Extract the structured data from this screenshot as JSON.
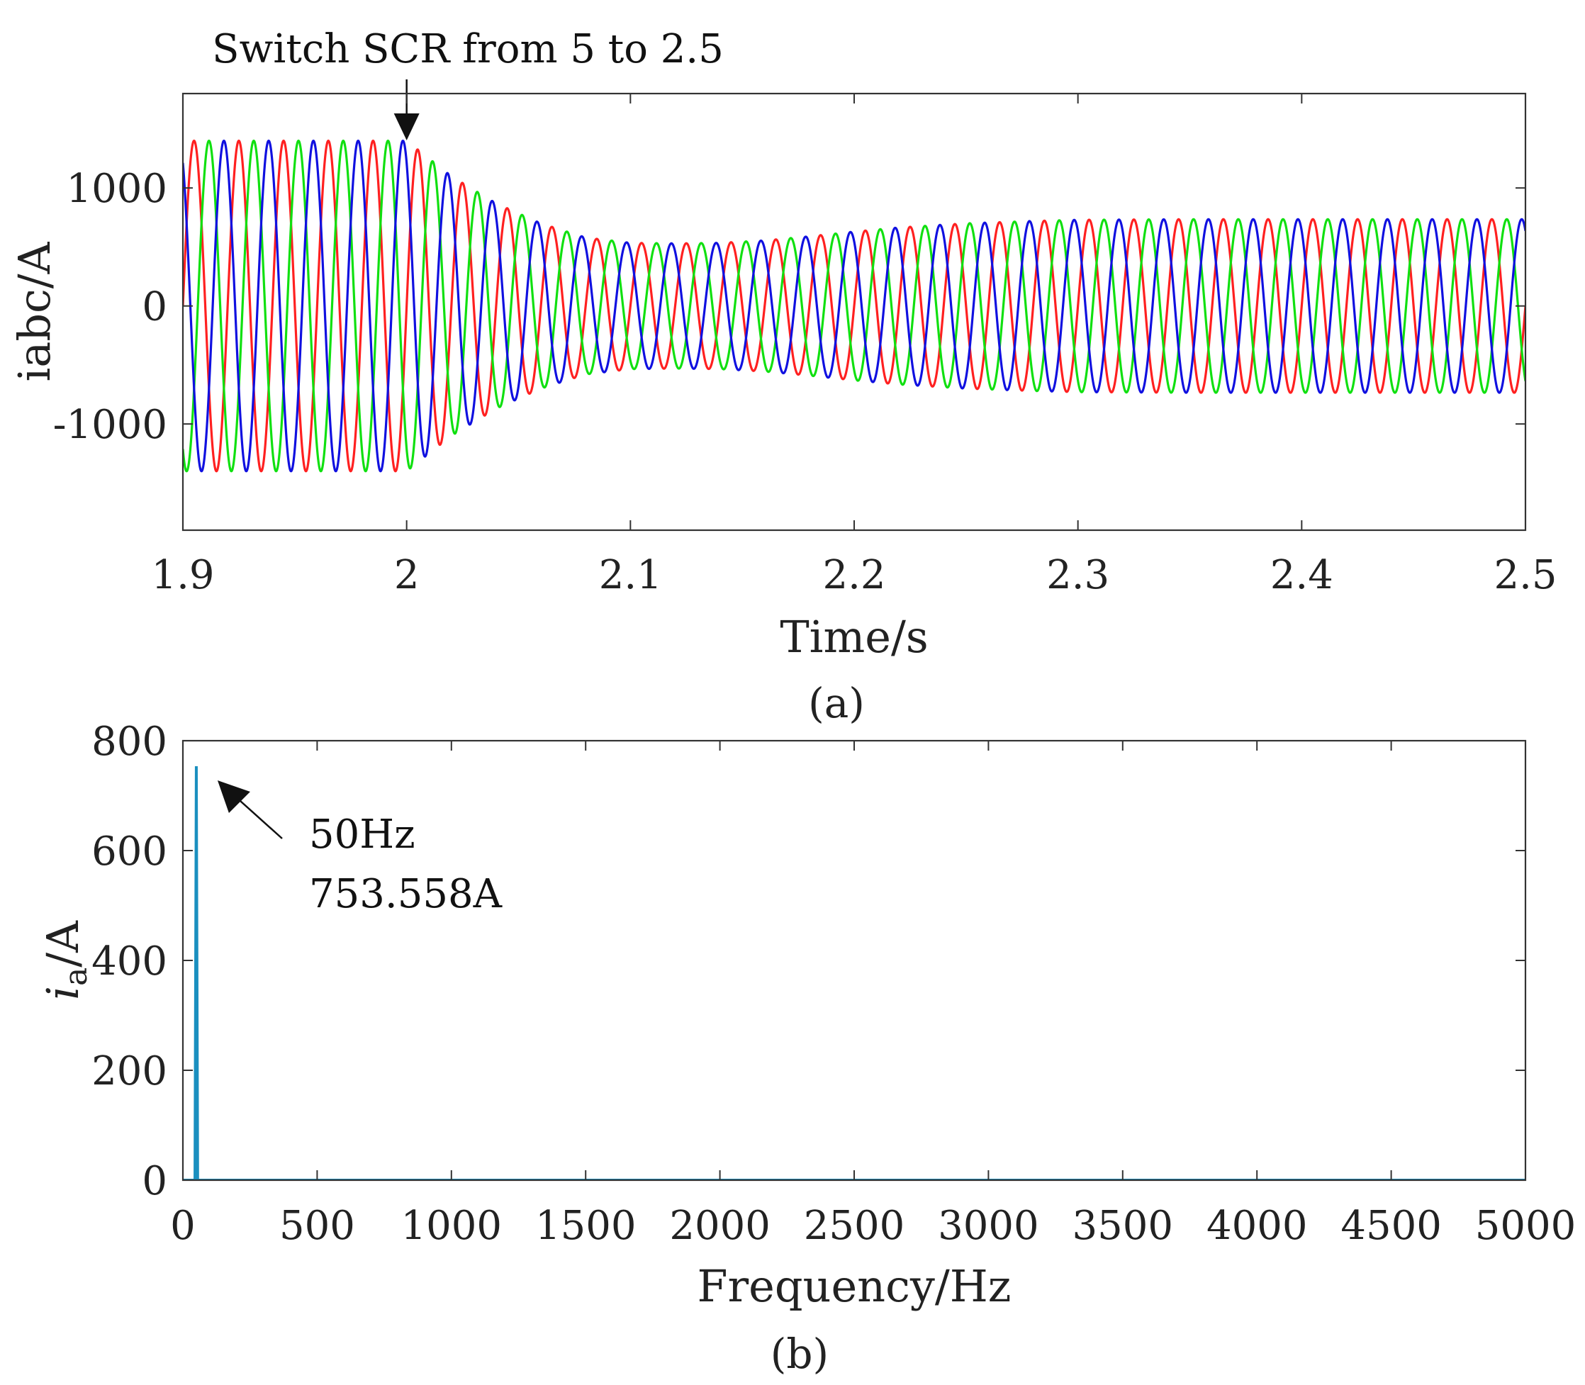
{
  "chart_data": [
    {
      "type": "line",
      "panel": "(a)",
      "xlabel": "Time/s",
      "ylabel": "iabc/A",
      "xlim": [
        1.9,
        2.5
      ],
      "ylim": [
        -1900,
        1800
      ],
      "xticks": [
        1.9,
        2,
        2.1,
        2.2,
        2.3,
        2.4,
        2.5
      ],
      "xtick_labels": [
        "1.9",
        "2",
        "2.1",
        "2.2",
        "2.3",
        "2.4",
        "2.5"
      ],
      "yticks": [
        1000,
        0,
        -1000
      ],
      "ytick_labels": [
        "1000",
        "0",
        "-1000"
      ],
      "grid": false,
      "frequency_hz": 50,
      "series": [
        {
          "phase_deg": 0,
          "color": "#ff2020"
        },
        {
          "phase_deg": -120,
          "color": "#10e010"
        },
        {
          "phase_deg": 120,
          "color": "#1010e0"
        }
      ],
      "envelope": {
        "t": [
          1.9,
          2.0,
          2.02,
          2.04,
          2.06,
          2.08,
          2.1,
          2.12,
          2.14,
          2.16,
          2.18,
          2.2,
          2.22,
          2.25,
          2.28,
          2.3,
          2.35,
          2.4,
          2.5
        ],
        "amplitude": [
          1400,
          1400,
          1100,
          870,
          700,
          580,
          535,
          530,
          535,
          555,
          590,
          630,
          665,
          700,
          720,
          730,
          735,
          735,
          735
        ]
      },
      "annotation": {
        "text": "Switch SCR from 5 to 2.5",
        "x": 2.0
      }
    },
    {
      "type": "line",
      "panel": "(b)",
      "xlabel": "Frequency/Hz",
      "ylabel_main": "i",
      "ylabel_sub": "a",
      "ylabel_suffix": "/A",
      "xlim": [
        0,
        5000
      ],
      "ylim": [
        0,
        800
      ],
      "xticks": [
        0,
        500,
        1000,
        1500,
        2000,
        2500,
        3000,
        3500,
        4000,
        4500,
        5000
      ],
      "xtick_labels": [
        "0",
        "500",
        "1000",
        "1500",
        "2000",
        "2500",
        "3000",
        "3500",
        "4000",
        "4500",
        "5000"
      ],
      "yticks": [
        0,
        200,
        400,
        600,
        800
      ],
      "ytick_labels": [
        "0",
        "200",
        "400",
        "600",
        "800"
      ],
      "grid": false,
      "series": [
        {
          "color": "#1a8fbf",
          "x": [
            0,
            45,
            50,
            55,
            5000
          ],
          "y": [
            0,
            0,
            753.558,
            0,
            0
          ]
        }
      ],
      "annotation": {
        "line1": "50Hz",
        "line2": "753.558A",
        "x": 50,
        "y": 753.558
      }
    }
  ]
}
